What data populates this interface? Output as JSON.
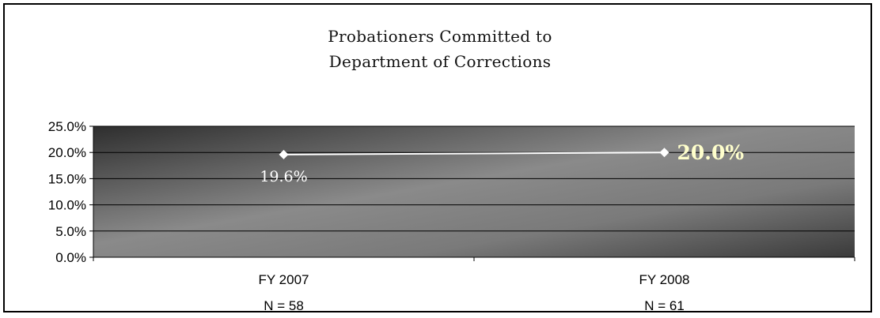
{
  "chart_data": {
    "type": "line",
    "title_lines": [
      "Probationers Committed to",
      "Department of Corrections"
    ],
    "categories": [
      "FY 2007",
      "FY 2008"
    ],
    "category_sublabels": [
      "N = 58",
      "N = 61"
    ],
    "values": [
      19.6,
      20.0
    ],
    "data_labels": [
      "19.6%",
      "20.0%"
    ],
    "yticks": [
      "0.0%",
      "5.0%",
      "10.0%",
      "15.0%",
      "20.0%",
      "25.0%"
    ],
    "ylim": [
      0,
      25
    ],
    "grid": true,
    "legend": "none",
    "colors": {
      "plot_dark": "#2e2e2e",
      "plot_light": "#8a8a8a",
      "line": "#ffffff",
      "label_highlight": "#ffffcc"
    }
  }
}
